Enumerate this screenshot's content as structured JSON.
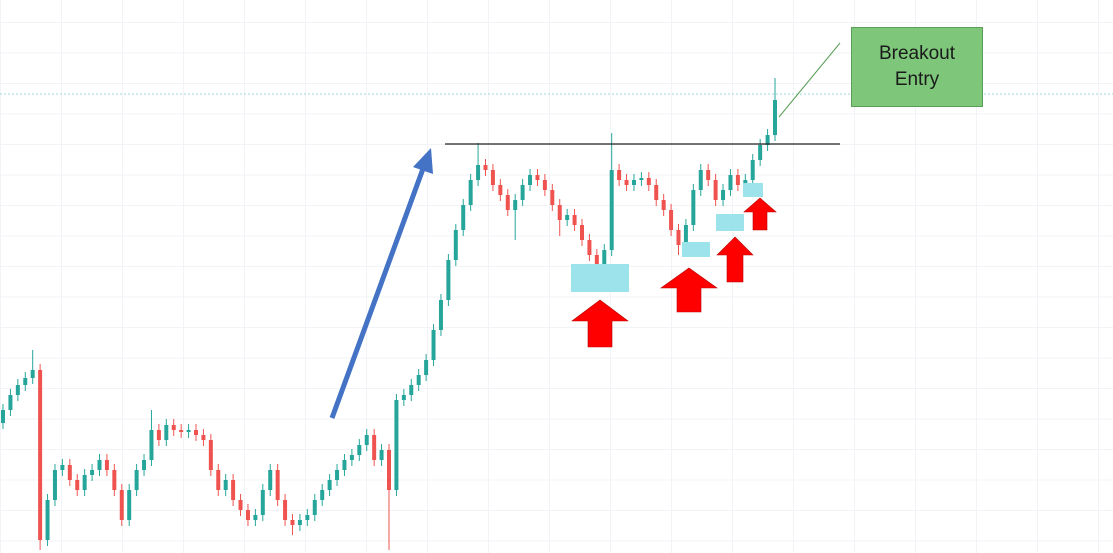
{
  "chart_data": {
    "type": "candlestick",
    "annotation": "Breakout Entry",
    "up_color": "#26a69a",
    "down_color": "#ef5350",
    "resistance": 409,
    "ylim": [
      0,
      553
    ],
    "open": [
      130,
      143,
      158,
      168,
      175,
      183,
      13,
      53,
      83,
      88,
      73,
      63,
      78,
      83,
      93,
      83,
      63,
      33,
      63,
      83,
      93,
      123,
      113,
      128,
      123,
      121,
      123,
      118,
      113,
      83,
      63,
      73,
      53,
      43,
      33,
      38,
      63,
      83,
      53,
      33,
      28,
      33,
      38,
      53,
      63,
      73,
      83,
      93,
      98,
      108,
      118,
      93,
      103,
      63,
      153,
      158,
      168,
      178,
      193,
      223,
      253,
      293,
      323,
      348,
      373,
      388,
      383,
      368,
      358,
      343,
      353,
      368,
      378,
      373,
      363,
      348,
      333,
      338,
      328,
      313,
      298,
      288,
      303,
      383,
      373,
      368,
      373,
      375,
      368,
      353,
      343,
      323,
      308,
      328,
      363,
      383,
      373,
      353,
      363,
      378,
      368,
      373,
      393,
      408,
      418
    ],
    "high": [
      149,
      164,
      174,
      181,
      203,
      189,
      59,
      89,
      94,
      94,
      79,
      84,
      89,
      99,
      99,
      89,
      69,
      69,
      89,
      99,
      143,
      129,
      134,
      134,
      129,
      129,
      129,
      124,
      119,
      89,
      79,
      79,
      59,
      49,
      44,
      69,
      89,
      89,
      59,
      39,
      39,
      44,
      59,
      69,
      79,
      89,
      99,
      104,
      114,
      124,
      124,
      109,
      109,
      159,
      164,
      174,
      184,
      199,
      229,
      259,
      299,
      329,
      354,
      379,
      410,
      394,
      389,
      374,
      364,
      359,
      374,
      384,
      384,
      379,
      369,
      354,
      344,
      344,
      334,
      319,
      304,
      309,
      420,
      389,
      379,
      379,
      381,
      381,
      374,
      359,
      349,
      329,
      334,
      369,
      389,
      389,
      379,
      369,
      384,
      384,
      379,
      399,
      414,
      424,
      475
    ],
    "low": [
      124,
      137,
      152,
      162,
      169,
      3,
      7,
      47,
      77,
      67,
      57,
      57,
      72,
      77,
      77,
      57,
      27,
      27,
      57,
      77,
      87,
      107,
      107,
      117,
      115,
      115,
      112,
      107,
      77,
      57,
      57,
      47,
      37,
      27,
      27,
      32,
      57,
      47,
      27,
      18,
      22,
      27,
      32,
      47,
      57,
      67,
      77,
      87,
      92,
      102,
      87,
      87,
      3,
      57,
      147,
      152,
      162,
      172,
      187,
      217,
      247,
      287,
      317,
      342,
      367,
      377,
      362,
      352,
      337,
      313,
      347,
      362,
      367,
      357,
      342,
      317,
      327,
      322,
      307,
      292,
      268,
      282,
      297,
      367,
      362,
      362,
      367,
      362,
      347,
      337,
      317,
      298,
      302,
      322,
      357,
      367,
      347,
      347,
      357,
      362,
      362,
      367,
      387,
      402,
      412
    ],
    "close": [
      143,
      158,
      168,
      175,
      183,
      13,
      53,
      83,
      88,
      73,
      63,
      78,
      83,
      93,
      83,
      63,
      33,
      63,
      83,
      93,
      123,
      113,
      128,
      123,
      121,
      123,
      118,
      113,
      83,
      63,
      73,
      53,
      43,
      33,
      38,
      63,
      83,
      53,
      33,
      28,
      33,
      38,
      53,
      63,
      73,
      83,
      93,
      98,
      108,
      118,
      93,
      103,
      63,
      153,
      158,
      168,
      178,
      193,
      223,
      253,
      293,
      323,
      348,
      373,
      388,
      383,
      368,
      358,
      343,
      353,
      368,
      378,
      373,
      363,
      348,
      333,
      338,
      328,
      313,
      298,
      288,
      303,
      383,
      373,
      368,
      373,
      375,
      368,
      353,
      343,
      323,
      308,
      328,
      363,
      383,
      373,
      353,
      363,
      378,
      368,
      373,
      393,
      408,
      418,
      453
    ]
  }
}
